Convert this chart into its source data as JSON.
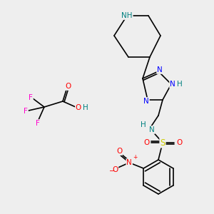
{
  "bg_color": "#eeeeee",
  "atom_colors": {
    "N": "#0000ff",
    "NH": "#008080",
    "O": "#ff0000",
    "F": "#ff00cc",
    "S": "#cccc00",
    "C": "#000000",
    "H": "#008080"
  }
}
